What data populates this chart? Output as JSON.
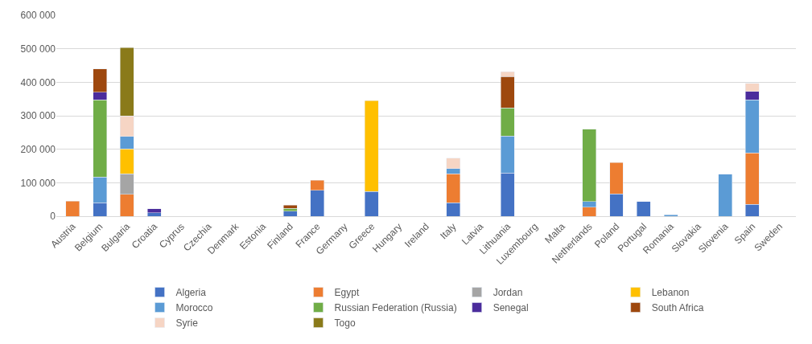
{
  "chart_data": {
    "type": "bar",
    "stacked": true,
    "categories": [
      "Austria",
      "Belgium",
      "Bulgaria",
      "Croatia",
      "Cyprus",
      "Czechia",
      "Denmark",
      "Estonia",
      "Finland",
      "France",
      "Germany",
      "Greece",
      "Hungary",
      "Ireland",
      "Italy",
      "Latvia",
      "Lithuania",
      "Luxembourg",
      "Malta",
      "Netherlands",
      "Poland",
      "Portugal",
      "Romania",
      "Slovakia",
      "Slovenia",
      "Spain",
      "Sweden"
    ],
    "series": [
      {
        "name": "Algeria",
        "color": "#4472c4",
        "values": [
          null,
          40000,
          null,
          10000,
          null,
          null,
          null,
          null,
          15000,
          78000,
          null,
          74000,
          null,
          null,
          40000,
          null,
          129000,
          null,
          null,
          null,
          67000,
          44000,
          null,
          null,
          null,
          36000,
          null
        ]
      },
      {
        "name": "Egypt",
        "color": "#ed7d31",
        "values": [
          45000,
          null,
          66000,
          null,
          null,
          null,
          null,
          null,
          null,
          29000,
          null,
          null,
          null,
          null,
          87000,
          null,
          null,
          null,
          null,
          27000,
          93000,
          null,
          null,
          null,
          null,
          153000,
          null
        ]
      },
      {
        "name": "Jordan",
        "color": "#a5a5a5",
        "values": [
          null,
          null,
          61000,
          null,
          null,
          null,
          null,
          null,
          null,
          null,
          null,
          null,
          null,
          null,
          null,
          null,
          null,
          null,
          null,
          null,
          null,
          null,
          null,
          null,
          null,
          null,
          null
        ]
      },
      {
        "name": "Lebanon",
        "color": "#ffc000",
        "values": [
          null,
          null,
          74000,
          null,
          null,
          null,
          null,
          null,
          null,
          null,
          null,
          271000,
          null,
          null,
          null,
          null,
          null,
          null,
          null,
          null,
          null,
          null,
          null,
          null,
          null,
          null,
          null
        ]
      },
      {
        "name": "Morocco",
        "color": "#5b9bd5",
        "values": [
          null,
          77000,
          37000,
          null,
          null,
          null,
          null,
          null,
          null,
          null,
          null,
          null,
          null,
          null,
          15000,
          null,
          110000,
          null,
          null,
          17000,
          null,
          null,
          4000,
          null,
          125000,
          158000,
          null
        ]
      },
      {
        "name": "Russian Federation (Russia)",
        "color": "#70ad47",
        "values": [
          null,
          231000,
          null,
          null,
          null,
          null,
          null,
          null,
          8000,
          null,
          null,
          null,
          null,
          null,
          null,
          null,
          85000,
          null,
          null,
          216000,
          null,
          null,
          null,
          null,
          null,
          null,
          null
        ]
      },
      {
        "name": "Senegal",
        "color": "#4b2c9c",
        "values": [
          null,
          22000,
          null,
          12000,
          null,
          null,
          null,
          null,
          null,
          null,
          null,
          null,
          null,
          null,
          null,
          null,
          null,
          null,
          null,
          null,
          null,
          null,
          null,
          null,
          null,
          26000,
          null
        ]
      },
      {
        "name": "South Africa",
        "color": "#9e480e",
        "values": [
          null,
          70000,
          null,
          null,
          null,
          null,
          null,
          null,
          10000,
          null,
          null,
          null,
          null,
          null,
          null,
          null,
          93000,
          null,
          null,
          null,
          null,
          null,
          null,
          null,
          null,
          null,
          null
        ]
      },
      {
        "name": "Syrie",
        "color": "#f6d5c4",
        "values": [
          null,
          null,
          62000,
          null,
          null,
          null,
          null,
          null,
          null,
          null,
          null,
          null,
          null,
          null,
          31000,
          null,
          15000,
          null,
          null,
          null,
          null,
          null,
          null,
          null,
          null,
          24000,
          null
        ]
      },
      {
        "name": "Togo",
        "color": "#8a7a1a",
        "values": [
          null,
          null,
          203000,
          null,
          null,
          null,
          null,
          null,
          null,
          null,
          null,
          null,
          null,
          null,
          null,
          null,
          null,
          null,
          null,
          null,
          null,
          null,
          null,
          null,
          null,
          null,
          null
        ]
      }
    ],
    "ylim": [
      0,
      600000
    ],
    "yticks": [
      {
        "value": 0,
        "label": "0"
      },
      {
        "value": 100000,
        "label": "100 000"
      },
      {
        "value": 200000,
        "label": "200 000"
      },
      {
        "value": 300000,
        "label": "300 000"
      },
      {
        "value": 400000,
        "label": "400 000"
      },
      {
        "value": 500000,
        "label": "500 000"
      },
      {
        "value": 600000,
        "label": "600 000"
      }
    ],
    "grid": "y",
    "legend": "bottom"
  }
}
